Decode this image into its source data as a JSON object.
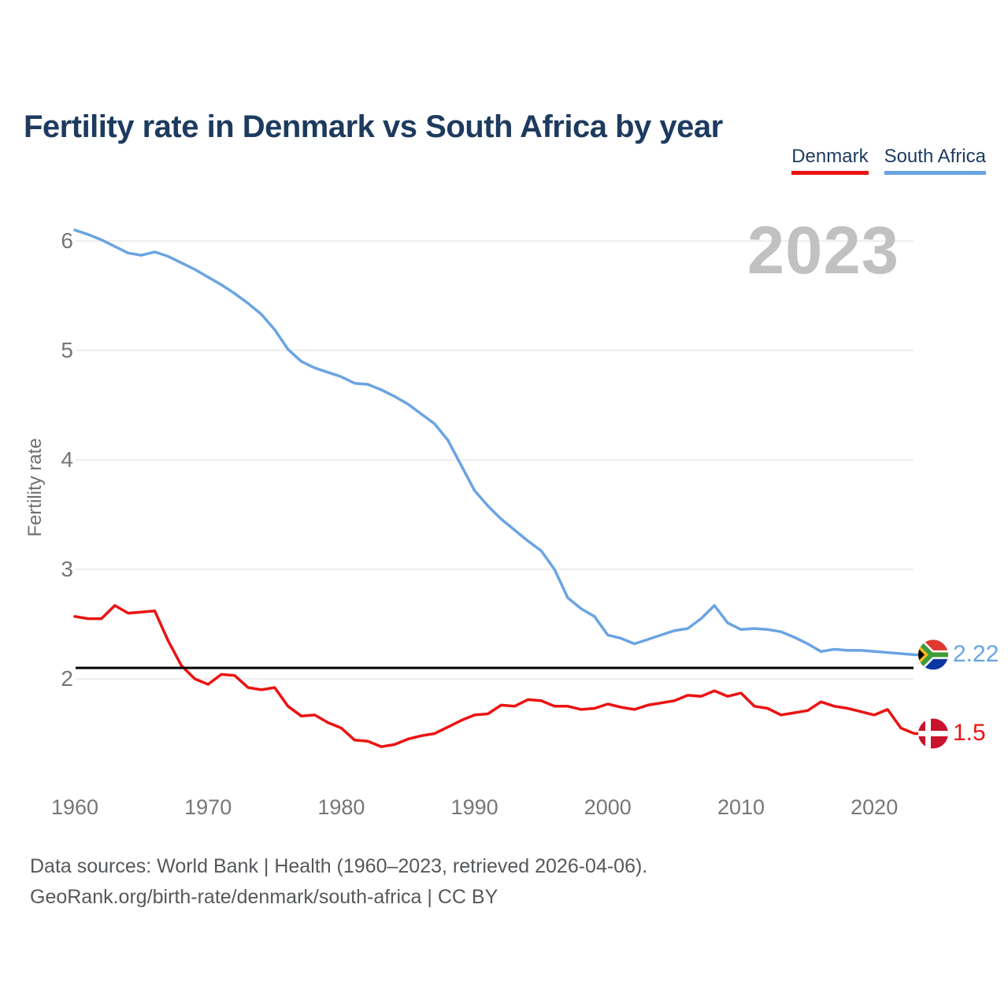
{
  "title": "Fertility rate in Denmark vs South Africa by year",
  "watermark": "2023",
  "legend": [
    {
      "label": "Denmark",
      "color": "#ec1212"
    },
    {
      "label": "South Africa",
      "color": "#6aa4e2"
    }
  ],
  "y_axis": {
    "label": "Fertility rate",
    "ticks": [
      6,
      5,
      4,
      3,
      2
    ]
  },
  "x_axis": {
    "ticks": [
      1960,
      1970,
      1980,
      1990,
      2000,
      2010,
      2020
    ]
  },
  "reference_line": {
    "value": 2.1,
    "color": "#000000"
  },
  "end_labels": [
    {
      "series": "South Africa",
      "value": "2.22",
      "flag": "south-africa-flag"
    },
    {
      "series": "Denmark",
      "value": "1.5",
      "flag": "denmark-flag"
    }
  ],
  "footer": {
    "line1": "Data sources: World Bank | Health (1960–2023, retrieved 2026-04-06).",
    "line2": "GeoRank.org/birth-rate/denmark/south-africa | CC BY"
  },
  "chart_data": {
    "type": "line",
    "title": "Fertility rate in Denmark vs South Africa by year",
    "xlabel": "",
    "ylabel": "Fertility rate",
    "ylim": [
      1.2,
      6.3
    ],
    "grid": "horizontal",
    "legend_position": "top-right",
    "reference_line_y": 2.1,
    "x": [
      1960,
      1961,
      1962,
      1963,
      1964,
      1965,
      1966,
      1967,
      1968,
      1969,
      1970,
      1971,
      1972,
      1973,
      1974,
      1975,
      1976,
      1977,
      1978,
      1979,
      1980,
      1981,
      1982,
      1983,
      1984,
      1985,
      1986,
      1987,
      1988,
      1989,
      1990,
      1991,
      1992,
      1993,
      1994,
      1995,
      1996,
      1997,
      1998,
      1999,
      2000,
      2001,
      2002,
      2003,
      2004,
      2005,
      2006,
      2007,
      2008,
      2009,
      2010,
      2011,
      2012,
      2013,
      2014,
      2015,
      2016,
      2017,
      2018,
      2019,
      2020,
      2021,
      2022,
      2023
    ],
    "series": [
      {
        "name": "Denmark",
        "color": "#ec1212",
        "values": [
          2.57,
          2.55,
          2.55,
          2.67,
          2.6,
          2.61,
          2.62,
          2.35,
          2.12,
          2.0,
          1.95,
          2.04,
          2.03,
          1.92,
          1.9,
          1.92,
          1.75,
          1.66,
          1.67,
          1.6,
          1.55,
          1.44,
          1.43,
          1.38,
          1.4,
          1.45,
          1.48,
          1.5,
          1.56,
          1.62,
          1.67,
          1.68,
          1.76,
          1.75,
          1.81,
          1.8,
          1.75,
          1.75,
          1.72,
          1.73,
          1.77,
          1.74,
          1.72,
          1.76,
          1.78,
          1.8,
          1.85,
          1.84,
          1.89,
          1.84,
          1.87,
          1.75,
          1.73,
          1.67,
          1.69,
          1.71,
          1.79,
          1.75,
          1.73,
          1.7,
          1.67,
          1.72,
          1.55,
          1.5
        ]
      },
      {
        "name": "South Africa",
        "color": "#6aa4e2",
        "values": [
          6.1,
          6.06,
          6.01,
          5.95,
          5.89,
          5.87,
          5.9,
          5.86,
          5.8,
          5.74,
          5.67,
          5.6,
          5.52,
          5.43,
          5.33,
          5.19,
          5.01,
          4.9,
          4.84,
          4.8,
          4.76,
          4.7,
          4.69,
          4.64,
          4.58,
          4.51,
          4.42,
          4.33,
          4.18,
          3.95,
          3.72,
          3.58,
          3.46,
          3.36,
          3.26,
          3.17,
          3.0,
          2.74,
          2.64,
          2.57,
          2.4,
          2.37,
          2.32,
          2.36,
          2.4,
          2.44,
          2.46,
          2.55,
          2.67,
          2.51,
          2.45,
          2.46,
          2.45,
          2.43,
          2.38,
          2.32,
          2.25,
          2.27,
          2.26,
          2.26,
          2.25,
          2.24,
          2.23,
          2.22
        ]
      }
    ]
  }
}
